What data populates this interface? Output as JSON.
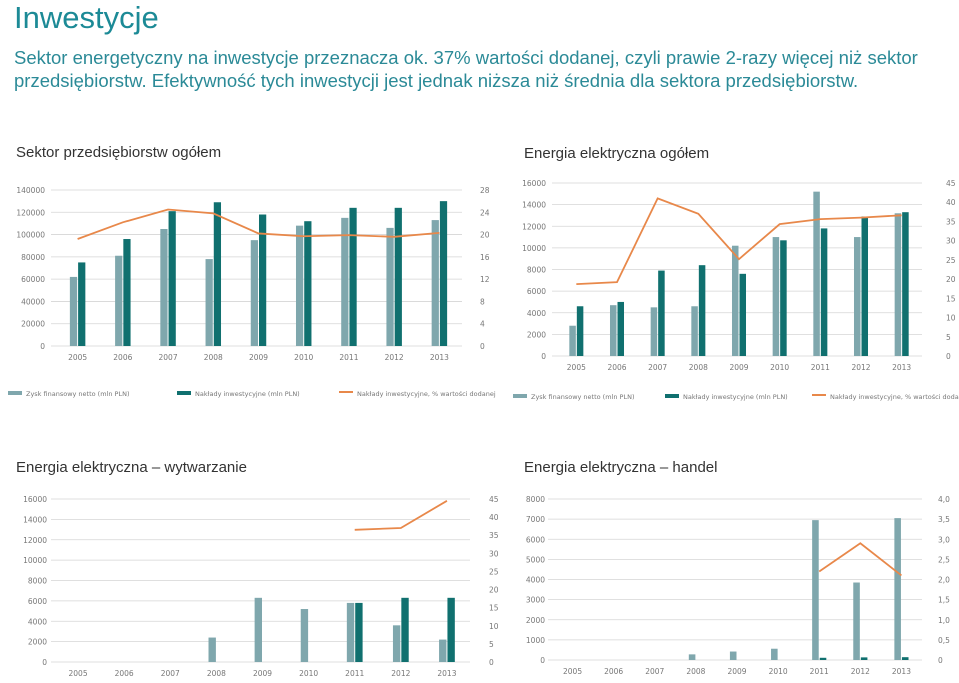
{
  "page": {
    "title": "Inwestycje",
    "intro": "Sektor energetyczny na inwestycje przeznacza ok. 37% wartości dodanej, czyli prawie 2-razy więcej niż sektor przedsiębiorstw. Efektywność tych inwestycji jest jednak niższa niż średnia dla sektora przedsiębiorstw."
  },
  "colors": {
    "zysk": "#7fa7ad",
    "naklady": "#10706f",
    "procent": "#e8884a",
    "title": "#1c8a96",
    "axis": "#d5d5d5",
    "tick": "#777777"
  },
  "chart_data": [
    {
      "type": "bar",
      "title": "Sektor przedsiębiorstw ogółem",
      "categories": [
        "2005",
        "2006",
        "2007",
        "2008",
        "2009",
        "2010",
        "2011",
        "2012",
        "2013"
      ],
      "series": [
        {
          "name": "Zysk finansowy netto (mln PLN)",
          "kind": "bar",
          "axis": "left",
          "values": [
            62000,
            81000,
            105000,
            78000,
            95000,
            108000,
            115000,
            106000,
            113000
          ]
        },
        {
          "name": "Nakłady inwestycyjne (mln PLN)",
          "kind": "bar",
          "axis": "left",
          "values": [
            75000,
            96000,
            121000,
            129000,
            118000,
            112000,
            124000,
            124000,
            130000
          ]
        },
        {
          "name": "Nakłady inwestycyjne, % wartości dodanej",
          "kind": "line",
          "axis": "right",
          "values": [
            19.2,
            22.2,
            24.5,
            23.8,
            20.2,
            19.7,
            19.9,
            19.6,
            20.3
          ]
        }
      ],
      "ylim": [
        0,
        140000
      ],
      "yticks": [
        0,
        20000,
        40000,
        60000,
        80000,
        100000,
        120000,
        140000
      ],
      "y2lim": [
        0,
        28
      ],
      "y2ticks": [
        0,
        4,
        8,
        12,
        16,
        20,
        24,
        28
      ],
      "legend": "bottom"
    },
    {
      "type": "bar",
      "title": "Energia elektryczna ogółem",
      "categories": [
        "2005",
        "2006",
        "2007",
        "2008",
        "2009",
        "2010",
        "2011",
        "2012",
        "2013"
      ],
      "series": [
        {
          "name": "Zysk finansowy netto (mln PLN)",
          "kind": "bar",
          "axis": "left",
          "values": [
            2800,
            4700,
            4500,
            4600,
            10200,
            11000,
            15200,
            11000,
            13200
          ]
        },
        {
          "name": "Nakłady inwestycyjne (mln PLN)",
          "kind": "bar",
          "axis": "left",
          "values": [
            4600,
            5000,
            7900,
            8400,
            7600,
            10700,
            11800,
            12900,
            13300
          ]
        },
        {
          "name": "Nakłady inwestycyjne, % wartości dodanej",
          "kind": "line",
          "axis": "right",
          "values": [
            18.7,
            19.2,
            41.0,
            37.0,
            25.2,
            34.3,
            35.6,
            36.0,
            36.6
          ]
        }
      ],
      "ylim": [
        0,
        16000
      ],
      "yticks": [
        0,
        2000,
        4000,
        6000,
        8000,
        10000,
        12000,
        14000,
        16000
      ],
      "y2lim": [
        0,
        45
      ],
      "y2ticks": [
        0,
        5,
        10,
        15,
        20,
        25,
        30,
        35,
        40,
        45
      ],
      "legend": "bottom"
    },
    {
      "type": "bar",
      "title": "Energia elektryczna – wytwarzanie",
      "categories": [
        "2005",
        "2006",
        "2007",
        "2008",
        "2009",
        "2010",
        "2011",
        "2012",
        "2013"
      ],
      "series": [
        {
          "name": "Zysk finansowy netto (mln PLN)",
          "kind": "bar",
          "axis": "left",
          "values": [
            null,
            null,
            null,
            2400,
            6300,
            5200,
            5800,
            3600,
            2200
          ]
        },
        {
          "name": "Nakłady inwestycyjne (mln PLN)",
          "kind": "bar",
          "axis": "left",
          "values": [
            null,
            null,
            null,
            null,
            null,
            null,
            5800,
            6300,
            6300
          ]
        },
        {
          "name": "Nakłady inwestycyjne, % wartości dodanej",
          "kind": "line",
          "axis": "right",
          "values": [
            null,
            null,
            null,
            null,
            null,
            null,
            36.5,
            37.0,
            44.5
          ]
        }
      ],
      "ylim": [
        0,
        16000
      ],
      "yticks": [
        0,
        2000,
        4000,
        6000,
        8000,
        10000,
        12000,
        14000,
        16000
      ],
      "y2lim": [
        0,
        45
      ],
      "y2ticks": [
        0,
        5,
        10,
        15,
        20,
        25,
        30,
        35,
        40,
        45
      ]
    },
    {
      "type": "bar",
      "title": "Energia elektryczna – handel",
      "categories": [
        "2005",
        "2006",
        "2007",
        "2008",
        "2009",
        "2010",
        "2011",
        "2012",
        "2013"
      ],
      "series": [
        {
          "name": "Zysk finansowy netto (mln PLN)",
          "kind": "bar",
          "axis": "left",
          "values": [
            null,
            null,
            null,
            280,
            420,
            560,
            6950,
            3850,
            7050
          ]
        },
        {
          "name": "Nakłady inwestycyjne (mln PLN)",
          "kind": "bar",
          "axis": "left",
          "values": [
            null,
            null,
            null,
            null,
            null,
            null,
            110,
            130,
            140
          ]
        },
        {
          "name": "Nakłady inwestycyjne, % wartości dodanej",
          "kind": "line",
          "axis": "right",
          "values": [
            null,
            null,
            null,
            null,
            null,
            null,
            2.2,
            2.9,
            2.1
          ]
        }
      ],
      "ylim": [
        0,
        8000
      ],
      "yticks": [
        0,
        1000,
        2000,
        3000,
        4000,
        5000,
        6000,
        7000,
        8000
      ],
      "y2lim": [
        0,
        4
      ],
      "y2ticks": [
        "0",
        "0,5",
        "1,0",
        "1,5",
        "2,0",
        "2,5",
        "3,0",
        "3,5",
        "4,0"
      ],
      "y2values": [
        0,
        0.5,
        1,
        1.5,
        2,
        2.5,
        3,
        3.5,
        4
      ]
    }
  ]
}
